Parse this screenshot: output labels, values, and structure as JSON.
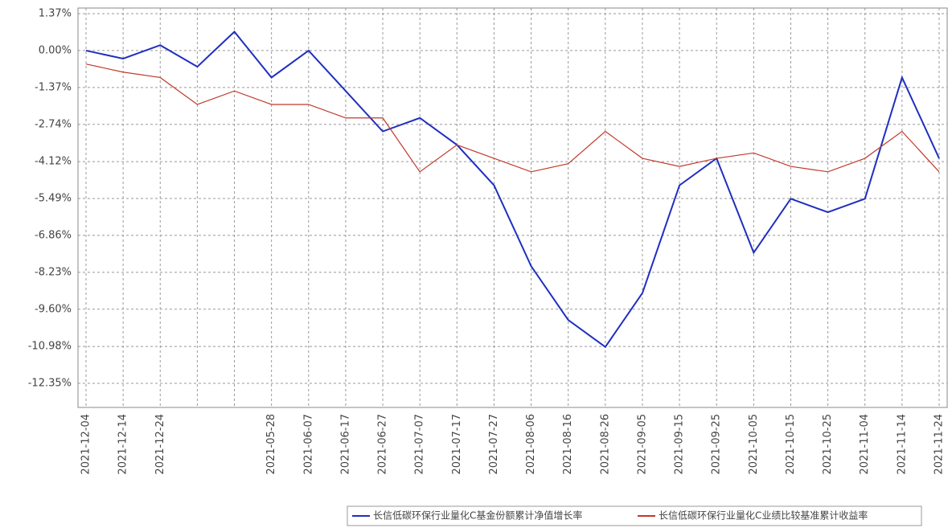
{
  "chart_data": {
    "type": "line",
    "categories": [
      "2021-12-04",
      "2021-12-14",
      "2021-12-24",
      null,
      null,
      "2021-05-28",
      "2021-06-07",
      "2021-06-17",
      "2021-06-27",
      "2021-07-07",
      "2021-07-17",
      "2021-07-27",
      "2021-08-06",
      "2021-08-16",
      "2021-08-26",
      "2021-09-05",
      "2021-09-15",
      "2021-09-25",
      "2021-10-05",
      "2021-10-15",
      "2021-10-25",
      "2021-11-04",
      "2021-11-14",
      "2021-11-24"
    ],
    "series": [
      {
        "name": "长信低碳环保行业量化C基金份额累计净值增长率",
        "color": "#1f2fbf",
        "values": [
          0,
          -0.3,
          0.2,
          -0.6,
          0.7,
          -1.0,
          0,
          -1.5,
          -3.0,
          -2.5,
          -3.5,
          -5.0,
          -8.0,
          -10.0,
          -11.0,
          -9.0,
          -5.0,
          -4.0,
          -7.5,
          -5.5,
          -6.0,
          -5.5,
          -1.0,
          -4.0
        ]
      },
      {
        "name": "长信低碳环保行业量化C业绩比较基准累计收益率",
        "color": "#c0392b",
        "values": [
          -0.5,
          -0.8,
          -1.0,
          -2.0,
          -1.5,
          -2.0,
          -2.0,
          -2.5,
          -2.5,
          -4.5,
          -3.5,
          -4.0,
          -4.5,
          -4.2,
          -3.0,
          -4.0,
          -4.3,
          -4.0,
          -3.8,
          -4.3,
          -4.5,
          -4.0,
          -3.0,
          -4.5
        ]
      }
    ],
    "ylim": [
      -12.35,
      1.37
    ],
    "yticks": [
      {
        "value": 1.37,
        "label": "1.37%"
      },
      {
        "value": 0,
        "label": "0.00%"
      },
      {
        "value": -1.37,
        "label": "-1.37%"
      },
      {
        "value": -2.74,
        "label": "-2.74%"
      },
      {
        "value": -4.12,
        "label": "-4.12%"
      },
      {
        "value": -5.49,
        "label": "-5.49%"
      },
      {
        "value": -6.86,
        "label": "-6.86%"
      },
      {
        "value": -8.23,
        "label": "-8.23%"
      },
      {
        "value": -9.6,
        "label": "-9.60%"
      },
      {
        "value": -10.98,
        "label": "-10.98%"
      },
      {
        "value": -12.35,
        "label": "-12.35%"
      }
    ],
    "grid": true
  }
}
